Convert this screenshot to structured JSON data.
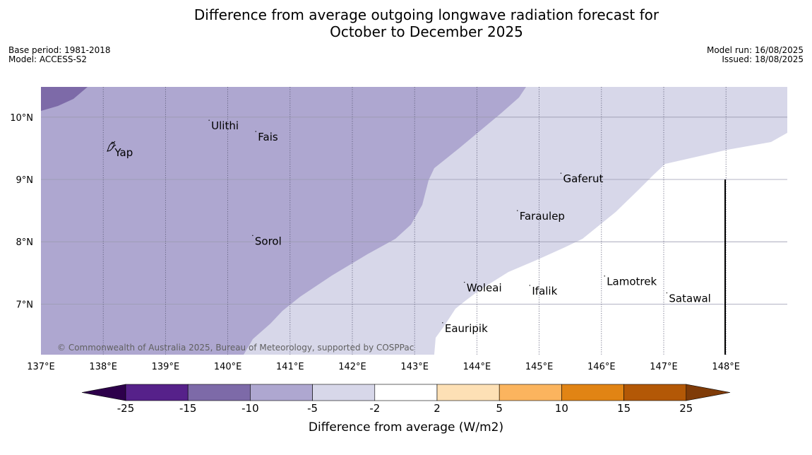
{
  "title": {
    "line1": "Difference from average outgoing longwave radiation forecast for",
    "line2": "October to December 2025"
  },
  "meta": {
    "base_period": "Base period: 1981-2018",
    "model": "Model: ACCESS-S2",
    "model_run": "Model run: 16/08/2025",
    "issued": "Issued: 18/08/2025"
  },
  "map": {
    "lon_range": [
      137,
      149
    ],
    "lat_range": [
      6.2,
      10.5
    ],
    "lon_ticks": [
      "137°E",
      "138°E",
      "139°E",
      "140°E",
      "141°E",
      "142°E",
      "143°E",
      "144°E",
      "145°E",
      "146°E",
      "147°E",
      "148°E"
    ],
    "lat_ticks": [
      "10°N",
      "9°N",
      "8°N",
      "7°N"
    ],
    "places": [
      {
        "name": "Yap",
        "lon": 138.15,
        "lat": 9.52
      },
      {
        "name": "Ulithi",
        "lon": 139.7,
        "lat": 9.95
      },
      {
        "name": "Fais",
        "lon": 140.45,
        "lat": 9.77
      },
      {
        "name": "Gaferut",
        "lon": 145.35,
        "lat": 9.1
      },
      {
        "name": "Faraulep",
        "lon": 144.65,
        "lat": 8.5
      },
      {
        "name": "Sorol",
        "lon": 140.4,
        "lat": 8.1
      },
      {
        "name": "Lamotrek",
        "lon": 146.05,
        "lat": 7.45
      },
      {
        "name": "Satawal",
        "lon": 147.05,
        "lat": 7.18
      },
      {
        "name": "Woleai",
        "lon": 143.8,
        "lat": 7.35
      },
      {
        "name": "Ifalik",
        "lon": 144.85,
        "lat": 7.3
      },
      {
        "name": "Eauripik",
        "lon": 143.45,
        "lat": 6.7
      }
    ],
    "copyright": "© Commonwealth of Australia 2025, Bureau of Meteorology, supported by COSPPac"
  },
  "colorbar": {
    "title": "Difference from average (W/m2)",
    "labels": [
      "-25",
      "-15",
      "-10",
      "-5",
      "-2",
      "2",
      "5",
      "10",
      "15",
      "25"
    ],
    "colors": [
      "#56218a",
      "#7d6aa8",
      "#aea7d0",
      "#d7d7e9",
      "#ffffff",
      "#fde0b5",
      "#fbb45e",
      "#e18414",
      "#b35806"
    ],
    "under_color": "#2d004b",
    "over_color": "#7f3b08"
  }
}
